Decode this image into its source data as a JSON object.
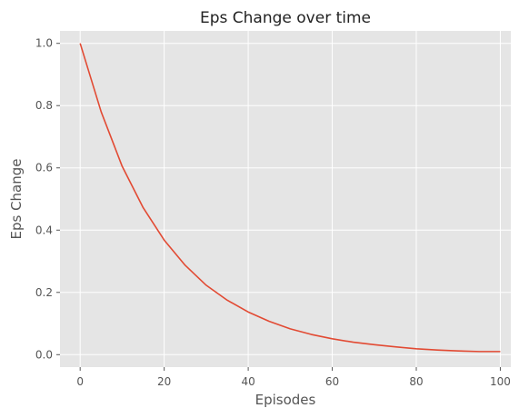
{
  "chart_data": {
    "type": "line",
    "title": "Eps Change over time",
    "xlabel": "Episodes",
    "ylabel": "Eps Change",
    "xlim": [
      -4.8,
      102.5
    ],
    "ylim": [
      -0.04,
      1.04
    ],
    "xticks": [
      0,
      20,
      40,
      60,
      80,
      100
    ],
    "xtick_labels": [
      "0",
      "20",
      "40",
      "60",
      "80",
      "100"
    ],
    "yticks": [
      0.0,
      0.2,
      0.4,
      0.6,
      0.8,
      1.0
    ],
    "ytick_labels": [
      "0.0",
      "0.2",
      "0.4",
      "0.6",
      "0.8",
      "1.0"
    ],
    "grid": true,
    "colors": {
      "background": "#e5e5e5",
      "grid": "#ffffff",
      "line": "#e24a33",
      "text": "#555555"
    },
    "series": [
      {
        "x": [
          0,
          5,
          10,
          15,
          20,
          25,
          30,
          35,
          40,
          45,
          50,
          55,
          60,
          65,
          70,
          75,
          80,
          85,
          90,
          95,
          100
        ],
        "y": [
          1.0,
          0.78,
          0.605,
          0.472,
          0.368,
          0.287,
          0.223,
          0.175,
          0.137,
          0.107,
          0.083,
          0.065,
          0.051,
          0.04,
          0.032,
          0.025,
          0.019,
          0.015,
          0.012,
          0.01,
          0.01
        ]
      }
    ]
  }
}
